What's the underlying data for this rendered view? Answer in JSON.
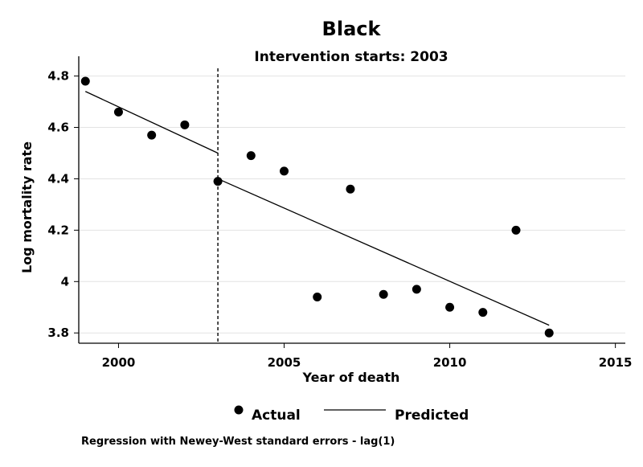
{
  "chart_data": {
    "type": "scatter",
    "title": "Black",
    "subtitle": "Intervention starts: 2003",
    "xlabel": "Year of death",
    "ylabel": "Log mortality rate",
    "xlim": [
      1998.8,
      2015.3
    ],
    "ylim": [
      3.76,
      4.83
    ],
    "xticks": [
      2000,
      2005,
      2010,
      2015
    ],
    "yticks": [
      3.8,
      4,
      4.2,
      4.4,
      4.6,
      4.8
    ],
    "ytick_labels": [
      "3.8",
      "4",
      "4.2",
      "4.4",
      "4.6",
      "4.8"
    ],
    "grid": "horizontal",
    "intervention_year": 2003,
    "series": [
      {
        "name": "Actual",
        "kind": "scatter",
        "x": [
          1999,
          2000,
          2001,
          2002,
          2003,
          2004,
          2005,
          2006,
          2007,
          2008,
          2009,
          2010,
          2011,
          2012,
          2013
        ],
        "y": [
          4.78,
          4.66,
          4.57,
          4.61,
          4.39,
          4.49,
          4.43,
          3.94,
          4.36,
          3.95,
          3.97,
          3.9,
          3.88,
          4.2,
          3.8
        ]
      },
      {
        "name": "Predicted",
        "kind": "line",
        "segments": [
          {
            "x": [
              1999,
              2003
            ],
            "y": [
              4.74,
              4.5
            ]
          },
          {
            "x": [
              2003,
              2013
            ],
            "y": [
              4.4,
              3.83
            ]
          }
        ]
      }
    ],
    "legend_position": "bottom",
    "note": "Regression with Newey-West standard errors - lag(1)"
  }
}
